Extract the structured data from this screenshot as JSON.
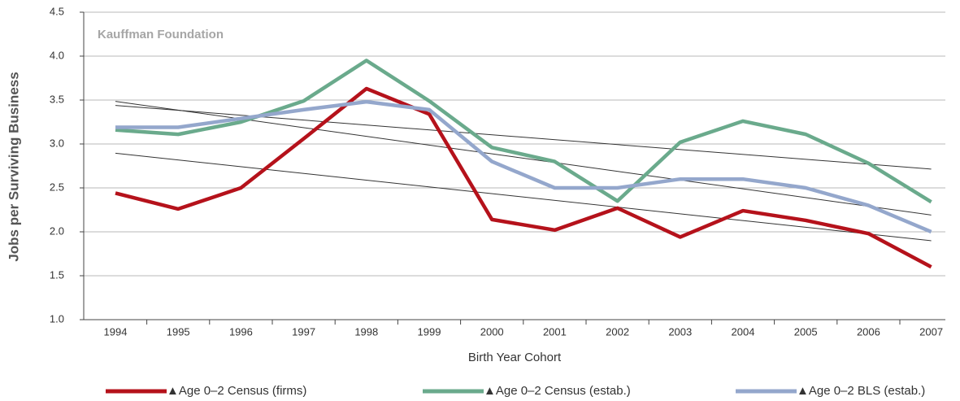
{
  "chart_data": {
    "type": "line",
    "annotation": "Kauffman Foundation",
    "x_label": "Birth Year Cohort",
    "y_label": "Jobs per Surviving Business",
    "categories": [
      "1994",
      "1995",
      "1996",
      "1997",
      "1998",
      "1999",
      "2000",
      "2001",
      "2002",
      "2003",
      "2004",
      "2005",
      "2006",
      "2007"
    ],
    "series": [
      {
        "name": "▲Age 0–2 Census (firms)",
        "color": "#b5121b",
        "values": [
          2.44,
          2.26,
          2.5,
          3.06,
          3.63,
          3.34,
          2.14,
          2.02,
          2.27,
          1.94,
          2.24,
          2.13,
          1.98,
          1.6
        ]
      },
      {
        "name": "▲Age 0–2 Census (estab.)",
        "color": "#6aaa8c",
        "values": [
          3.16,
          3.11,
          3.25,
          3.49,
          3.95,
          3.49,
          2.96,
          2.8,
          2.35,
          3.02,
          3.26,
          3.11,
          2.78,
          2.34
        ]
      },
      {
        "name": "▲Age 0–2 BLS (estab.)",
        "color": "#94a7cc",
        "values": [
          3.19,
          3.19,
          3.29,
          3.39,
          3.48,
          3.39,
          2.8,
          2.5,
          2.5,
          2.6,
          2.6,
          2.5,
          2.3,
          2.0
        ]
      }
    ],
    "ylim": [
      1.0,
      4.5
    ],
    "yticks": [
      {
        "value": 1.0,
        "label": "1.0"
      },
      1.5,
      {
        "value": 2.0,
        "label": "2.0"
      },
      2.5,
      {
        "value": 3.0,
        "label": "3.0"
      },
      3.5,
      {
        "value": 4.0,
        "label": "4.0"
      },
      4.5
    ],
    "grid": true,
    "trendlines": true,
    "legend": "bottom"
  }
}
